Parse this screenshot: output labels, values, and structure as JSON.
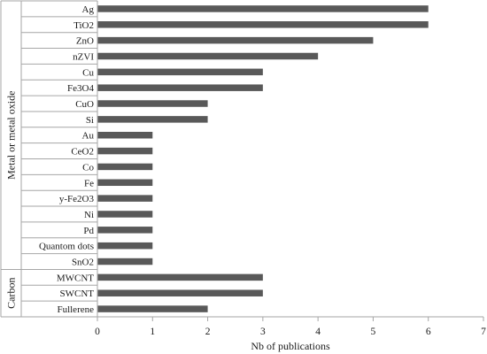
{
  "chart_data": {
    "type": "bar",
    "orientation": "horizontal",
    "categories": [
      "Ag",
      "TiO2",
      "ZnO",
      "nZVI",
      "Cu",
      "Fe3O4",
      "CuO",
      "Si",
      "Au",
      "CeO2",
      "Co",
      "Fe",
      "y-Fe2O3",
      "Ni",
      "Pd",
      "Quantom dots",
      "SnO2",
      "MWCNT",
      "SWCNT",
      "Fullerene"
    ],
    "values": [
      6,
      6,
      5,
      4,
      3,
      3,
      2,
      2,
      1,
      1,
      1,
      1,
      1,
      1,
      1,
      1,
      1,
      3,
      3,
      2
    ],
    "groups": [
      {
        "name": "Metal or metal oxide",
        "count": 17
      },
      {
        "name": "Carbon",
        "count": 3
      }
    ],
    "xlabel": "Nb of publications",
    "ylabel": "",
    "xlim": [
      0,
      7
    ],
    "xticks": [
      0,
      1,
      2,
      3,
      4,
      5,
      6,
      7
    ],
    "grid": false,
    "legend": "none",
    "bar_color": "#595959"
  }
}
